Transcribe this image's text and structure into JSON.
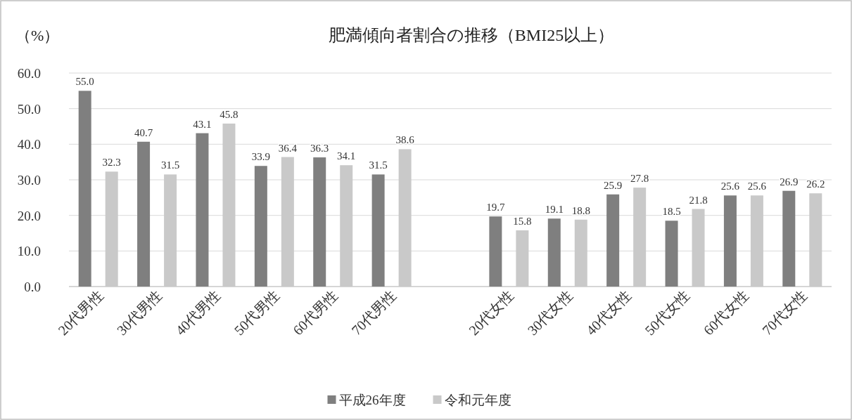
{
  "chart_data": {
    "type": "bar",
    "title": "肥満傾向者割合の推移（BMI25以上）",
    "ylabel": "（%）",
    "categories": [
      "20代男性",
      "30代男性",
      "40代男性",
      "50代男性",
      "60代男性",
      "70代男性",
      null,
      "20代女性",
      "30代女性",
      "40代女性",
      "50代女性",
      "60代女性",
      "70代女性"
    ],
    "series": [
      {
        "name": "平成26年度",
        "color": "#7f7f7f",
        "values": [
          55.0,
          40.7,
          43.1,
          33.9,
          36.3,
          31.5,
          null,
          19.7,
          19.1,
          25.9,
          18.5,
          25.6,
          26.9
        ],
        "value_labels": [
          "55.0",
          "40.7",
          "43.1",
          "33.9",
          "36.3",
          "31.5",
          null,
          "19.7",
          "19.1",
          "25.9",
          "18.5",
          "25.6",
          "26.9"
        ]
      },
      {
        "name": "令和元年度",
        "color": "#c9c9c9",
        "values": [
          32.3,
          31.5,
          45.8,
          36.4,
          34.1,
          38.6,
          null,
          15.8,
          18.8,
          27.8,
          21.8,
          25.6,
          26.2
        ],
        "value_labels": [
          "32.3",
          "31.5",
          "45.8",
          "36.4",
          "34.1",
          "38.6",
          null,
          "15.8",
          "18.8",
          "27.8",
          "21.8",
          "25.6",
          "26.2"
        ]
      }
    ],
    "ylim": [
      0,
      60
    ],
    "yticks": [
      {
        "value": 0,
        "label": "0.0"
      },
      {
        "value": 10,
        "label": "10.0"
      },
      {
        "value": 20,
        "label": "20.0"
      },
      {
        "value": 30,
        "label": "30.0"
      },
      {
        "value": 40,
        "label": "40.0"
      },
      {
        "value": 50,
        "label": "50.0"
      },
      {
        "value": 60,
        "label": "60.0"
      }
    ],
    "grid": "y",
    "legend": "bottom"
  }
}
